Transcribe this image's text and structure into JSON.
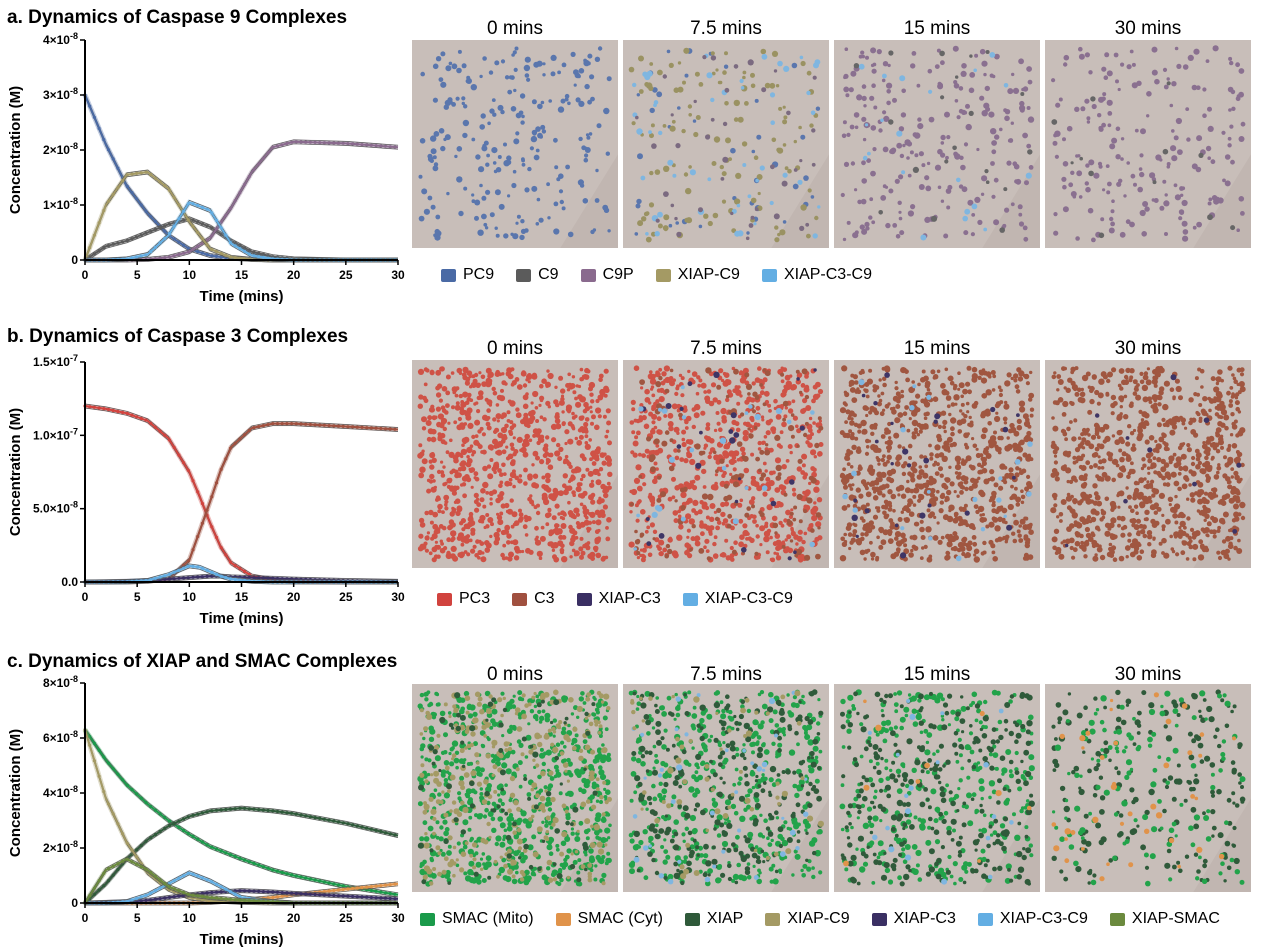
{
  "panels": [
    {
      "title": "a. Dynamics of Caspase 9 Complexes",
      "snapshot_labels": [
        "0 mins",
        "7.5 mins",
        "15 mins",
        "30 mins"
      ],
      "legend": [
        {
          "label": "PC9",
          "color": "#4a6aa5"
        },
        {
          "label": "C9",
          "color": "#5b5b5b"
        },
        {
          "label": "C9P",
          "color": "#8a6a8e"
        },
        {
          "label": "XIAP-C9",
          "color": "#a49a64"
        },
        {
          "label": "XIAP-C3-C9",
          "color": "#63aee3"
        }
      ],
      "snapshot_particles": [
        [
          {
            "color": "#5a76ad",
            "n": 230
          }
        ],
        [
          {
            "color": "#5a76ad",
            "n": 40
          },
          {
            "color": "#9a9262",
            "n": 120
          },
          {
            "color": "#7fb6e0",
            "n": 50
          },
          {
            "color": "#7b6a80",
            "n": 40
          }
        ],
        [
          {
            "color": "#8a7090",
            "n": 230
          },
          {
            "color": "#7fb6e0",
            "n": 20
          },
          {
            "color": "#666666",
            "n": 20
          }
        ],
        [
          {
            "color": "#8a7090",
            "n": 200
          },
          {
            "color": "#666666",
            "n": 12
          }
        ]
      ]
    },
    {
      "title": "b. Dynamics of Caspase 3 Complexes",
      "snapshot_labels": [
        "0 mins",
        "7.5 mins",
        "15 mins",
        "30 mins"
      ],
      "legend": [
        {
          "label": "PC3",
          "color": "#d1433e"
        },
        {
          "label": "C3",
          "color": "#a0503f"
        },
        {
          "label": "XIAP-C3",
          "color": "#3a2f63"
        },
        {
          "label": "XIAP-C3-C9",
          "color": "#63aee3"
        }
      ],
      "snapshot_particles": [
        [
          {
            "color": "#cf5246",
            "n": 900
          }
        ],
        [
          {
            "color": "#cf5246",
            "n": 700
          },
          {
            "color": "#a05640",
            "n": 150
          },
          {
            "color": "#3e3566",
            "n": 25
          },
          {
            "color": "#7fb6e0",
            "n": 25
          }
        ],
        [
          {
            "color": "#a05640",
            "n": 850
          },
          {
            "color": "#3e3566",
            "n": 25
          },
          {
            "color": "#7fb6e0",
            "n": 20
          }
        ],
        [
          {
            "color": "#a05640",
            "n": 870
          },
          {
            "color": "#3e3566",
            "n": 10
          }
        ]
      ]
    },
    {
      "title": "c. Dynamics of XIAP and SMAC Complexes",
      "snapshot_labels": [
        "0 mins",
        "7.5 mins",
        "15 mins",
        "30 mins"
      ],
      "legend": [
        {
          "label": "SMAC (Mito)",
          "color": "#1a9a4a"
        },
        {
          "label": "SMAC (Cyt)",
          "color": "#e0934a"
        },
        {
          "label": "XIAP",
          "color": "#2f5a3a"
        },
        {
          "label": "XIAP-C9",
          "color": "#a49a64"
        },
        {
          "label": "XIAP-C3",
          "color": "#3a2f63"
        },
        {
          "label": "XIAP-C3-C9",
          "color": "#63aee3"
        },
        {
          "label": "XIAP-SMAC",
          "color": "#6b8a3e"
        }
      ],
      "snapshot_particles": [
        [
          {
            "color": "#22a34a",
            "n": 700
          },
          {
            "color": "#a49a64",
            "n": 300
          },
          {
            "color": "#2f5a3a",
            "n": 80
          }
        ],
        [
          {
            "color": "#22a34a",
            "n": 450
          },
          {
            "color": "#2f5a3a",
            "n": 250
          },
          {
            "color": "#7fb6e0",
            "n": 40
          },
          {
            "color": "#a49a64",
            "n": 60
          }
        ],
        [
          {
            "color": "#22a34a",
            "n": 320
          },
          {
            "color": "#2f5a3a",
            "n": 280
          },
          {
            "color": "#7fb6e0",
            "n": 20
          },
          {
            "color": "#e0934a",
            "n": 10
          }
        ],
        [
          {
            "color": "#2f5a3a",
            "n": 200
          },
          {
            "color": "#22a34a",
            "n": 120
          },
          {
            "color": "#e0934a",
            "n": 40
          }
        ]
      ]
    }
  ],
  "chart_data": [
    {
      "type": "line",
      "panel": "a",
      "xlabel": "Time (mins)",
      "ylabel": "Concentration (M)",
      "xlim": [
        0,
        30
      ],
      "ylim": [
        0,
        4e-08
      ],
      "xticks": [
        "0",
        "5",
        "10",
        "15",
        "20",
        "25",
        "30"
      ],
      "yticks": [
        {
          "base": "0",
          "exp": ""
        },
        {
          "base": "1×10",
          "exp": "-8"
        },
        {
          "base": "2×10",
          "exp": "-8"
        },
        {
          "base": "3×10",
          "exp": "-8"
        },
        {
          "base": "4×10",
          "exp": "-8"
        }
      ],
      "x": [
        0,
        2,
        4,
        6,
        8,
        10,
        12,
        14,
        16,
        18,
        20,
        25,
        30
      ],
      "series": [
        {
          "name": "PC9",
          "color": "#4a6aa5",
          "values": [
            3e-08,
            2.1e-08,
            1.35e-08,
            8.5e-09,
            4.5e-09,
            2e-09,
            8e-10,
            3e-10,
            1e-10,
            0,
            0,
            0,
            0
          ]
        },
        {
          "name": "C9",
          "color": "#5b5b5b",
          "values": [
            0,
            2.5e-09,
            3.5e-09,
            5e-09,
            6.5e-09,
            7.5e-09,
            6e-09,
            3.5e-09,
            1.5e-09,
            6e-10,
            2e-10,
            0,
            0
          ]
        },
        {
          "name": "C9P",
          "color": "#8a6a8e",
          "values": [
            0,
            0,
            0,
            1e-10,
            5e-10,
            1.5e-09,
            4e-09,
            9.5e-09,
            1.6e-08,
            2.05e-08,
            2.15e-08,
            2.12e-08,
            2.05e-08
          ]
        },
        {
          "name": "XIAP-C9",
          "color": "#a49a64",
          "values": [
            0,
            1e-08,
            1.55e-08,
            1.6e-08,
            1.3e-08,
            7e-09,
            2e-09,
            5e-10,
            1e-10,
            0,
            0,
            0,
            0
          ]
        },
        {
          "name": "XIAP-C3-C9",
          "color": "#63aee3",
          "values": [
            0,
            0,
            2e-10,
            1e-09,
            4.5e-09,
            1.05e-08,
            9e-09,
            3e-09,
            8e-10,
            2e-10,
            0,
            0,
            0
          ]
        }
      ]
    },
    {
      "type": "line",
      "panel": "b",
      "xlabel": "Time (mins)",
      "ylabel": "Concentration (M)",
      "xlim": [
        0,
        30
      ],
      "ylim": [
        0,
        1.5e-07
      ],
      "xticks": [
        "0",
        "5",
        "10",
        "15",
        "20",
        "25",
        "30"
      ],
      "yticks": [
        {
          "base": "0.0",
          "exp": ""
        },
        {
          "base": "5.0×10",
          "exp": "-8"
        },
        {
          "base": "1.0×10",
          "exp": "-7"
        },
        {
          "base": "1.5×10",
          "exp": "-7"
        }
      ],
      "x": [
        0,
        2,
        4,
        6,
        8,
        10,
        11,
        12,
        13,
        14,
        16,
        18,
        20,
        25,
        30
      ],
      "series": [
        {
          "name": "PC3",
          "color": "#d1433e",
          "values": [
            1.2e-07,
            1.18e-07,
            1.15e-07,
            1.1e-07,
            9.8e-08,
            7.5e-08,
            5.8e-08,
            4e-08,
            2.4e-08,
            1.3e-08,
            4e-09,
            1.5e-09,
            5e-10,
            0,
            0
          ]
        },
        {
          "name": "C3",
          "color": "#a0503f",
          "values": [
            0,
            0,
            0,
            5e-10,
            2e-09,
            1.5e-08,
            3.5e-08,
            5.5e-08,
            7.6e-08,
            9.2e-08,
            1.05e-07,
            1.08e-07,
            1.08e-07,
            1.06e-07,
            1.04e-07
          ]
        },
        {
          "name": "XIAP-C3",
          "color": "#3a2f63",
          "values": [
            0,
            2e-10,
            5e-10,
            1e-09,
            2e-09,
            3e-09,
            3.5e-09,
            4e-09,
            4e-09,
            3.5e-09,
            3e-09,
            2.5e-09,
            2e-09,
            1e-09,
            5e-10
          ]
        },
        {
          "name": "XIAP-C3-C9",
          "color": "#63aee3",
          "values": [
            0,
            0,
            2e-10,
            1e-09,
            5e-09,
            1.1e-08,
            1e-08,
            7e-09,
            4e-09,
            2e-09,
            5e-10,
            0,
            0,
            0,
            0
          ]
        }
      ]
    },
    {
      "type": "line",
      "panel": "c",
      "xlabel": "Time (mins)",
      "ylabel": "Concentration (M)",
      "xlim": [
        0,
        30
      ],
      "ylim": [
        0,
        8e-08
      ],
      "xticks": [
        "0",
        "5",
        "10",
        "15",
        "20",
        "25",
        "30"
      ],
      "yticks": [
        {
          "base": "0",
          "exp": ""
        },
        {
          "base": "2×10",
          "exp": "-8"
        },
        {
          "base": "4×10",
          "exp": "-8"
        },
        {
          "base": "6×10",
          "exp": "-8"
        },
        {
          "base": "8×10",
          "exp": "-8"
        }
      ],
      "x": [
        0,
        2,
        4,
        6,
        8,
        10,
        12,
        15,
        18,
        20,
        25,
        30
      ],
      "series": [
        {
          "name": "SMAC (Mito)",
          "color": "#1a9a4a",
          "values": [
            6.3e-08,
            5.2e-08,
            4.3e-08,
            3.6e-08,
            3e-08,
            2.5e-08,
            2.05e-08,
            1.6e-08,
            1.2e-08,
            1e-08,
            6e-09,
            3e-09
          ]
        },
        {
          "name": "SMAC (Cyt)",
          "color": "#e0934a",
          "values": [
            0,
            0,
            0,
            0,
            0,
            0,
            2e-10,
            1e-09,
            2e-09,
            3e-09,
            5e-09,
            7e-09
          ]
        },
        {
          "name": "XIAP",
          "color": "#2f5a3a",
          "values": [
            0,
            7e-09,
            1.6e-08,
            2.3e-08,
            2.8e-08,
            3.15e-08,
            3.35e-08,
            3.45e-08,
            3.35e-08,
            3.25e-08,
            2.9e-08,
            2.45e-08
          ]
        },
        {
          "name": "XIAP-C9",
          "color": "#a49a64",
          "values": [
            6.3e-08,
            3.8e-08,
            2.2e-08,
            1.1e-08,
            5e-09,
            2e-09,
            8e-10,
            2e-10,
            0,
            0,
            0,
            0
          ]
        },
        {
          "name": "XIAP-C3",
          "color": "#3a2f63",
          "values": [
            0,
            2e-10,
            5e-10,
            1e-09,
            2e-09,
            3e-09,
            3.8e-09,
            4.5e-09,
            4e-09,
            3.5e-09,
            2.5e-09,
            1.5e-09
          ]
        },
        {
          "name": "XIAP-C3-C9",
          "color": "#63aee3",
          "values": [
            0,
            0,
            5e-10,
            3e-09,
            7e-09,
            1.1e-08,
            8e-09,
            2e-09,
            5e-10,
            0,
            0,
            0
          ]
        },
        {
          "name": "XIAP-SMAC",
          "color": "#6b8a3e",
          "values": [
            0,
            1.2e-08,
            1.6e-08,
            1.2e-08,
            6e-09,
            3e-09,
            2e-09,
            1e-09,
            5e-10,
            0,
            0,
            0
          ]
        }
      ]
    }
  ]
}
